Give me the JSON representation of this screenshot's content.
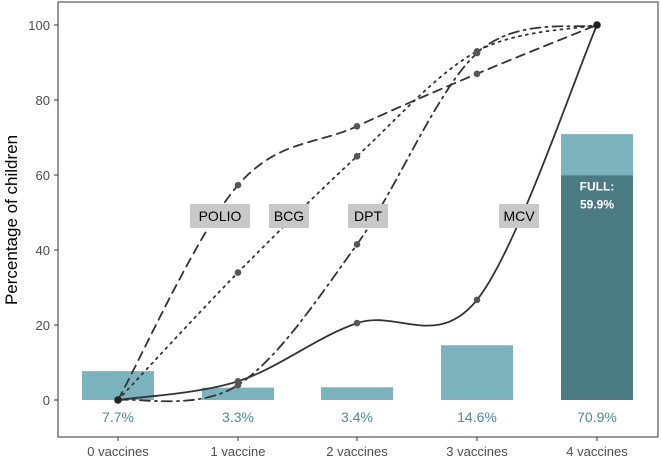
{
  "chart_data": {
    "type": "bar",
    "title": "",
    "xlabel": "",
    "ylabel": "Percentage of children",
    "ylim": [
      0,
      100
    ],
    "yticks": [
      0,
      20,
      40,
      60,
      80,
      100
    ],
    "grid": false,
    "categories": [
      "0 vaccines",
      "1 vaccine",
      "2 vaccines",
      "3 vaccines",
      "4 vaccines"
    ],
    "bars": {
      "values": [
        7.7,
        3.3,
        3.4,
        14.6,
        70.9
      ],
      "labels": [
        "7.7%",
        "3.3%",
        "3.4%",
        "14.6%",
        "70.9%"
      ],
      "color": "#7ab3be",
      "label_color": "#4a8c97"
    },
    "full_bar": {
      "category": "4 vaccines",
      "value": 59.9,
      "label_line1": "FULL:",
      "label_line2": "59.9%",
      "color": "#4a7a82"
    },
    "series": [
      {
        "name": "POLIO",
        "style": "dashed",
        "values": [
          0,
          57.3,
          73,
          87,
          100
        ]
      },
      {
        "name": "BCG",
        "style": "dotted",
        "values": [
          0,
          34,
          65,
          93,
          100
        ]
      },
      {
        "name": "DPT",
        "style": "dashdot",
        "values": [
          0,
          4,
          41.5,
          92.5,
          100
        ]
      },
      {
        "name": "MCV",
        "style": "solid",
        "values": [
          0,
          5,
          20.5,
          26.7,
          100
        ]
      }
    ],
    "series_label_bg": "#c8c8c8",
    "line_color": "#333333",
    "point_color": "#555555"
  }
}
